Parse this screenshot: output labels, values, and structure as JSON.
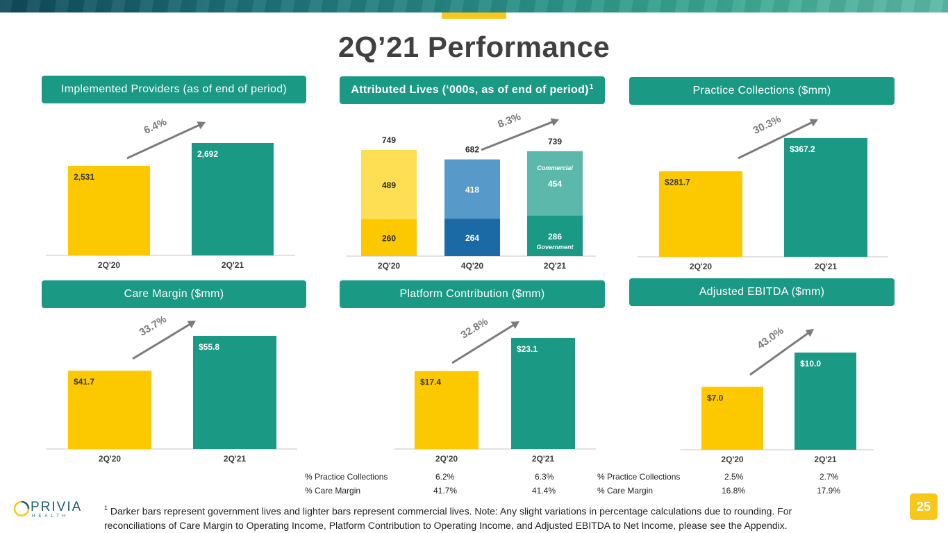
{
  "title": "2Q’21 Performance",
  "colors": {
    "teal": "#1a9985",
    "gold": "#fcc900",
    "growth_arrow": "#7b7b7b"
  },
  "panels": {
    "providers": {
      "label": "Implemented Providers (as of end of period)",
      "growth": "6.4%",
      "bars": [
        {
          "cat": "2Q'20",
          "value": 2531,
          "label": "2,531"
        },
        {
          "cat": "2Q'21",
          "value": 2692,
          "label": "2,692"
        }
      ]
    },
    "lives": {
      "label": "Attributed Lives (‘000s, as of end of period)",
      "footnote_ref": "1",
      "growth": "8.3%",
      "commercial_tag": "Commercial",
      "government_tag": "Government",
      "bars": [
        {
          "cat": "2Q'20",
          "total": "749",
          "government": 260,
          "commercial": 489
        },
        {
          "cat": "4Q'20",
          "total": "682",
          "government": 264,
          "commercial": 418
        },
        {
          "cat": "2Q'21",
          "total": "739",
          "government": 286,
          "commercial": 454
        }
      ]
    },
    "collections": {
      "label": "Practice Collections ($mm)",
      "growth": "30.3%",
      "bars": [
        {
          "cat": "2Q'20",
          "value": 281.7,
          "label": "$281.7"
        },
        {
          "cat": "2Q'21",
          "value": 367.2,
          "label": "$367.2"
        }
      ]
    },
    "care_margin": {
      "label": "Care Margin ($mm)",
      "growth": "33.7%",
      "bars": [
        {
          "cat": "2Q'20",
          "value": 41.7,
          "label": "$41.7"
        },
        {
          "cat": "2Q'21",
          "value": 55.8,
          "label": "$55.8"
        }
      ]
    },
    "platform": {
      "label": "Platform Contribution ($mm)",
      "growth": "32.8%",
      "bars": [
        {
          "cat": "2Q'20",
          "value": 17.4,
          "label": "$17.4"
        },
        {
          "cat": "2Q'21",
          "value": 23.1,
          "label": "$23.1"
        }
      ]
    },
    "ebitda": {
      "label": "Adjusted EBITDA ($mm)",
      "growth": "43.0%",
      "bars": [
        {
          "cat": "2Q'20",
          "value": 7.0,
          "label": "$7.0"
        },
        {
          "cat": "2Q'21",
          "value": 10.0,
          "label": "$10.0"
        }
      ]
    }
  },
  "metrics": {
    "platform": [
      {
        "label": "% Practice Collections",
        "v1": "6.2%",
        "v2": "6.3%"
      },
      {
        "label": "% Care Margin",
        "v1": "41.7%",
        "v2": "41.4%"
      }
    ],
    "ebitda": [
      {
        "label": "% Practice Collections",
        "v1": "2.5%",
        "v2": "2.7%"
      },
      {
        "label": "% Care Margin",
        "v1": "16.8%",
        "v2": "17.9%"
      }
    ]
  },
  "chart_data": [
    {
      "type": "bar",
      "title": "Implemented Providers (as of end of period)",
      "categories": [
        "2Q'20",
        "2Q'21"
      ],
      "values": [
        2531,
        2692
      ],
      "annotation": "6.4%"
    },
    {
      "type": "bar",
      "title": "Attributed Lives (‘000s, as of end of period)",
      "categories": [
        "2Q'20",
        "4Q'20",
        "2Q'21"
      ],
      "series": [
        {
          "name": "Government",
          "values": [
            260,
            264,
            286
          ]
        },
        {
          "name": "Commercial",
          "values": [
            489,
            418,
            454
          ]
        }
      ],
      "totals": [
        749,
        682,
        739
      ],
      "annotation": "8.3%"
    },
    {
      "type": "bar",
      "title": "Practice Collections ($mm)",
      "categories": [
        "2Q'20",
        "2Q'21"
      ],
      "values": [
        281.7,
        367.2
      ],
      "annotation": "30.3%"
    },
    {
      "type": "bar",
      "title": "Care Margin ($mm)",
      "categories": [
        "2Q'20",
        "2Q'21"
      ],
      "values": [
        41.7,
        55.8
      ],
      "annotation": "33.7%"
    },
    {
      "type": "bar",
      "title": "Platform Contribution ($mm)",
      "categories": [
        "2Q'20",
        "2Q'21"
      ],
      "values": [
        17.4,
        23.1
      ],
      "annotation": "32.8%"
    },
    {
      "type": "bar",
      "title": "Adjusted EBITDA ($mm)",
      "categories": [
        "2Q'20",
        "2Q'21"
      ],
      "values": [
        7.0,
        10.0
      ],
      "annotation": "43.0%"
    }
  ],
  "footnote": {
    "marker": "1",
    "line1": " Darker bars represent government lives and lighter bars represent commercial lives.  Note: Any slight variations in percentage calculations due to rounding.  For",
    "line2": "reconciliations of Care Margin to Operating Income, Platform Contribution to Operating Income, and Adjusted EBITDA to Net Income, please see the Appendix."
  },
  "page_number": "25",
  "logo": {
    "word": "PRIVIA",
    "sub": "HEALTH"
  }
}
